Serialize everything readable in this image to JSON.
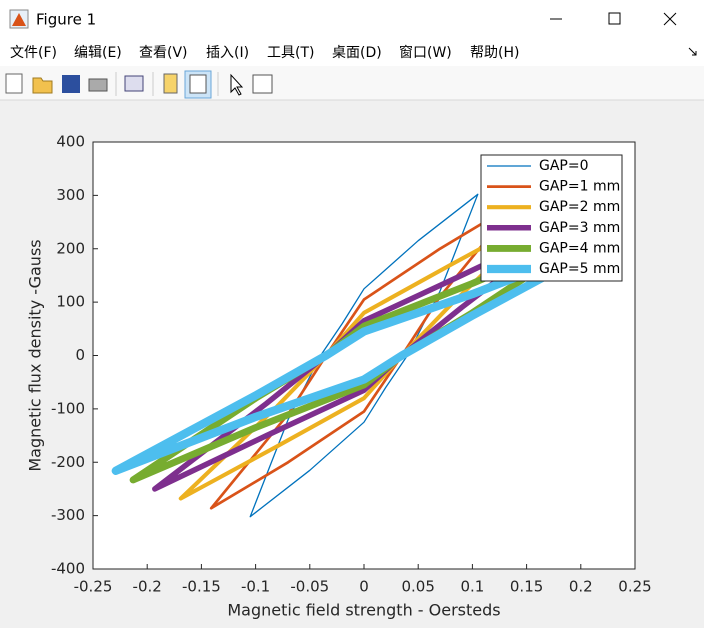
{
  "window": {
    "title": "Figure 1"
  },
  "menu": [
    "文件(F)",
    "编辑(E)",
    "查看(V)",
    "插入(I)",
    "工具(T)",
    "桌面(D)",
    "窗口(W)",
    "帮助(H)"
  ],
  "chart_data": {
    "type": "line",
    "xlabel": "Magnetic field strength - Oersteds",
    "ylabel": "Magnetic flux density -Gauss",
    "xlim": [
      -0.25,
      0.25
    ],
    "ylim": [
      -400,
      400
    ],
    "xticks": [
      -0.25,
      -0.2,
      -0.15,
      -0.1,
      -0.05,
      0,
      0.05,
      0.1,
      0.15,
      0.2,
      0.25
    ],
    "yticks": [
      -400,
      -300,
      -200,
      -100,
      0,
      100,
      200,
      300,
      400
    ],
    "legend": "upper right",
    "series": [
      {
        "name": "GAP=0",
        "color": "#0072bd",
        "x": [
          0.105,
          0.05,
          0,
          -0.02,
          -0.04,
          -0.07,
          -0.105,
          -0.05,
          0,
          0.02,
          0.04,
          0.07,
          0.105
        ],
        "values": [
          302,
          215,
          125,
          60,
          0,
          -120,
          -302,
          -215,
          -125,
          -60,
          0,
          120,
          302
        ]
      },
      {
        "name": "GAP=1 mm",
        "color": "#d95319",
        "x": [
          0.141,
          0.07,
          0,
          -0.035,
          -0.07,
          -0.141,
          -0.07,
          0,
          0.035,
          0.07,
          0.141
        ],
        "values": [
          286,
          200,
          105,
          0,
          -110,
          -286,
          -200,
          -105,
          0,
          110,
          286
        ]
      },
      {
        "name": "GAP=2 mm",
        "color": "#edb120",
        "x": [
          0.169,
          0.08,
          0,
          -0.035,
          -0.08,
          -0.169,
          -0.08,
          0,
          0.035,
          0.08,
          0.169
        ],
        "values": [
          268,
          170,
          80,
          0,
          -95,
          -268,
          -170,
          -80,
          0,
          95,
          268
        ]
      },
      {
        "name": "GAP=3 mm",
        "color": "#7e2f8e",
        "x": [
          0.193,
          0.09,
          0,
          -0.035,
          -0.09,
          -0.193,
          -0.09,
          0,
          0.035,
          0.09,
          0.193
        ],
        "values": [
          250,
          150,
          65,
          0,
          -90,
          -250,
          -150,
          -65,
          0,
          90,
          250
        ]
      },
      {
        "name": "GAP=4 mm",
        "color": "#77ac30",
        "x": [
          0.213,
          0.1,
          0,
          -0.035,
          -0.1,
          -0.213,
          -0.1,
          0,
          0.035,
          0.1,
          0.213
        ],
        "values": [
          233,
          135,
          55,
          0,
          -80,
          -233,
          -135,
          -55,
          0,
          80,
          233
        ]
      },
      {
        "name": "GAP=5 mm",
        "color": "#4dbeee",
        "x": [
          0.229,
          0.1,
          0,
          -0.035,
          -0.1,
          -0.229,
          -0.1,
          0,
          0.035,
          0.1,
          0.229
        ],
        "values": [
          216,
          115,
          45,
          0,
          -75,
          -216,
          -115,
          -45,
          0,
          75,
          216
        ]
      }
    ]
  }
}
